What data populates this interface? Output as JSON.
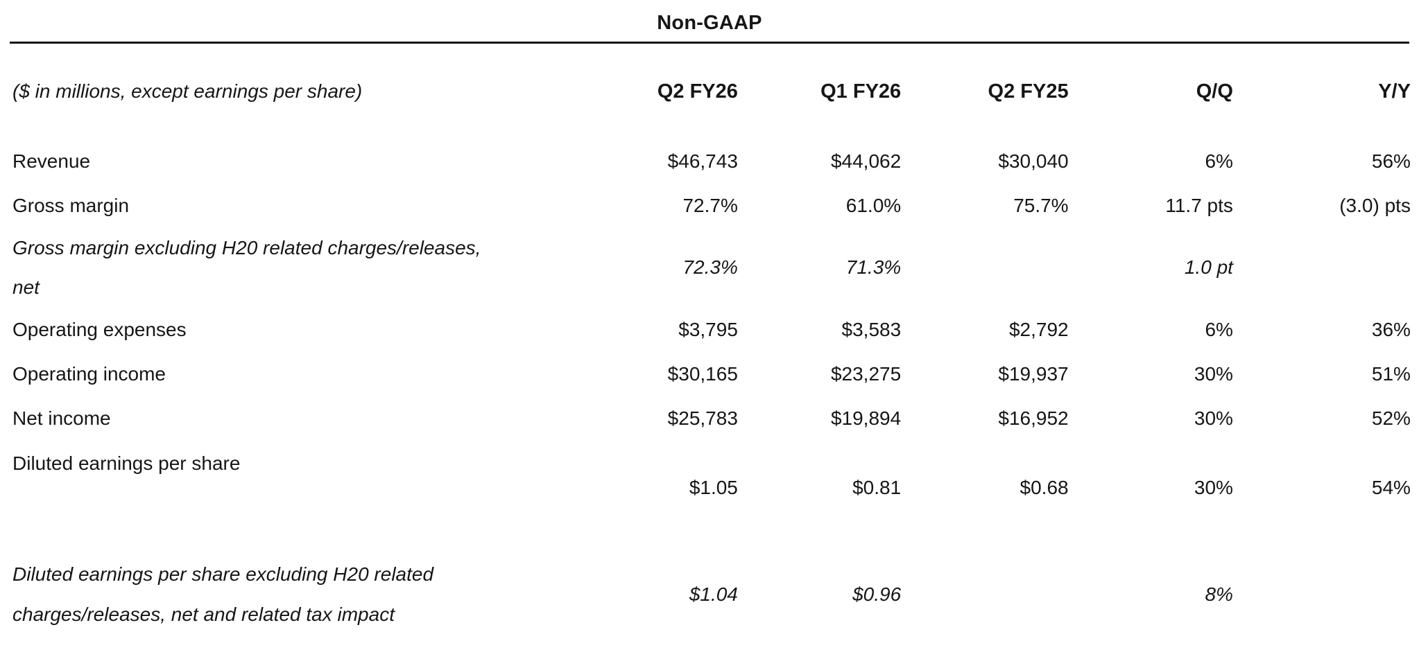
{
  "title": "Non-GAAP",
  "table": {
    "note": "($ in millions, except earnings per share)",
    "columns": [
      "Q2 FY26",
      "Q1 FY26",
      "Q2 FY25",
      "Q/Q",
      "Y/Y"
    ],
    "rows": [
      {
        "label": "Revenue",
        "values": [
          "$46,743",
          "$44,062",
          "$30,040",
          "6%",
          "56%"
        ],
        "italic": false
      },
      {
        "label": "Gross margin",
        "values": [
          "72.7%",
          "61.0%",
          "75.7%",
          "11.7 pts",
          "(3.0) pts"
        ],
        "italic": false
      },
      {
        "label": "Gross margin excluding H20 related charges/releases, net",
        "values": [
          "72.3%",
          "71.3%",
          "",
          "1.0 pt",
          ""
        ],
        "italic": true
      },
      {
        "label": "Operating expenses",
        "values": [
          "$3,795",
          "$3,583",
          "$2,792",
          "6%",
          "36%"
        ],
        "italic": false
      },
      {
        "label": "Operating income",
        "values": [
          "$30,165",
          "$23,275",
          "$19,937",
          "30%",
          "51%"
        ],
        "italic": false
      },
      {
        "label": "Net income",
        "values": [
          "$25,783",
          "$19,894",
          "$16,952",
          "30%",
          "52%"
        ],
        "italic": false
      },
      {
        "label": "Diluted earnings per share",
        "values": [
          "$1.05",
          "$0.81",
          "$0.68",
          "30%",
          "54%"
        ],
        "italic": false
      },
      {
        "label": "Diluted earnings per share excluding H20 related charges/releases, net and related tax impact",
        "values": [
          "$1.04",
          "$0.96",
          "",
          "8%",
          ""
        ],
        "italic": true
      }
    ]
  },
  "colors": {
    "text": "#161616",
    "rule": "#111111",
    "background": "#ffffff"
  }
}
